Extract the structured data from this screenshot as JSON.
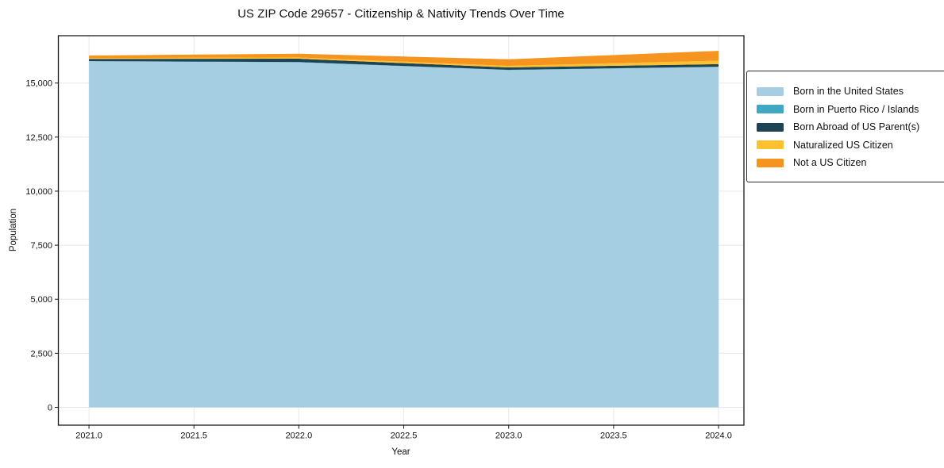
{
  "chart_data": {
    "type": "area",
    "stacked": true,
    "title": "US ZIP Code 29657 - Citizenship & Nativity Trends Over Time",
    "xlabel": "Year",
    "ylabel": "Population",
    "x": [
      2021,
      2022,
      2023,
      2024
    ],
    "series": [
      {
        "name": "Born in the United States",
        "color": "#a6cee3",
        "values": [
          16005,
          15960,
          15600,
          15745
        ]
      },
      {
        "name": "Born in Puerto Rico / Islands",
        "color": "#41a8c2",
        "values": [
          10,
          10,
          10,
          10
        ]
      },
      {
        "name": "Born Abroad of US Parent(s)",
        "color": "#1d4354",
        "values": [
          100,
          155,
          110,
          120
        ]
      },
      {
        "name": "Naturalized US Citizen",
        "color": "#fdc02f",
        "values": [
          40,
          60,
          75,
          160
        ]
      },
      {
        "name": "Not a US Citizen",
        "color": "#f5941f",
        "values": [
          120,
          170,
          305,
          455
        ]
      }
    ],
    "xlim": [
      2020.854,
      2024.121
    ],
    "ylim": [
      -825,
      17190
    ],
    "xticks": {
      "values": [
        2021,
        2021.5,
        2022,
        2022.5,
        2023,
        2023.5,
        2024
      ],
      "labels": [
        "2021.0",
        "2021.5",
        "2022.0",
        "2022.5",
        "2023.0",
        "2023.5",
        "2024.0"
      ]
    },
    "yticks": {
      "values": [
        0,
        2500,
        5000,
        7500,
        10000,
        12500,
        15000
      ],
      "labels": [
        "0",
        "2,500",
        "5,000",
        "7,500",
        "10,000",
        "12,500",
        "15,000"
      ]
    },
    "grid": true,
    "legend_position": "right"
  }
}
